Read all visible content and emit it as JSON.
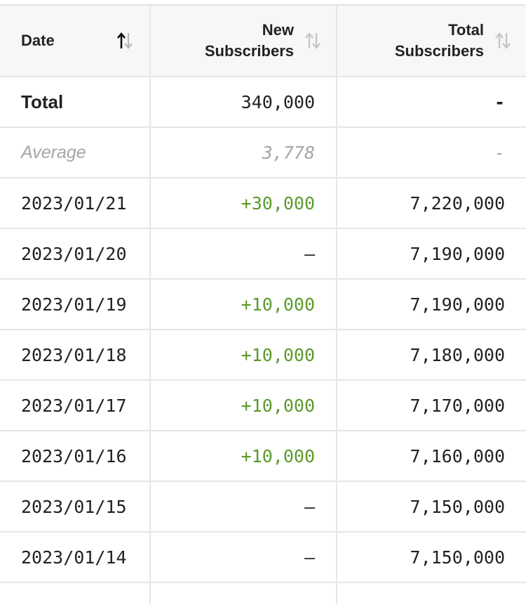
{
  "headers": {
    "date": "Date",
    "new_line1": "New",
    "new_line2": "Subscribers",
    "total_line1": "Total",
    "total_line2": "Subscribers"
  },
  "summary": {
    "total_label": "Total",
    "total_new": "340,000",
    "total_total": "-",
    "average_label": "Average",
    "average_new": "3,778",
    "average_total": "-"
  },
  "rows": [
    {
      "date": "2023/01/21",
      "new": "+30,000",
      "total": "7,220,000"
    },
    {
      "date": "2023/01/20",
      "new": "–",
      "total": "7,190,000"
    },
    {
      "date": "2023/01/19",
      "new": "+10,000",
      "total": "7,190,000"
    },
    {
      "date": "2023/01/18",
      "new": "+10,000",
      "total": "7,180,000"
    },
    {
      "date": "2023/01/17",
      "new": "+10,000",
      "total": "7,170,000"
    },
    {
      "date": "2023/01/16",
      "new": "+10,000",
      "total": "7,160,000"
    },
    {
      "date": "2023/01/15",
      "new": "–",
      "total": "7,150,000"
    },
    {
      "date": "2023/01/14",
      "new": "–",
      "total": "7,150,000"
    }
  ],
  "colors": {
    "positive": "#5a9a2b",
    "muted": "#a6a6a6",
    "header_bg": "#f7f7f7",
    "border": "#e6e6e6"
  },
  "icons": {
    "date_sort": "sort-ascending-active-icon",
    "new_sort": "sort-icon",
    "total_sort": "sort-icon"
  }
}
